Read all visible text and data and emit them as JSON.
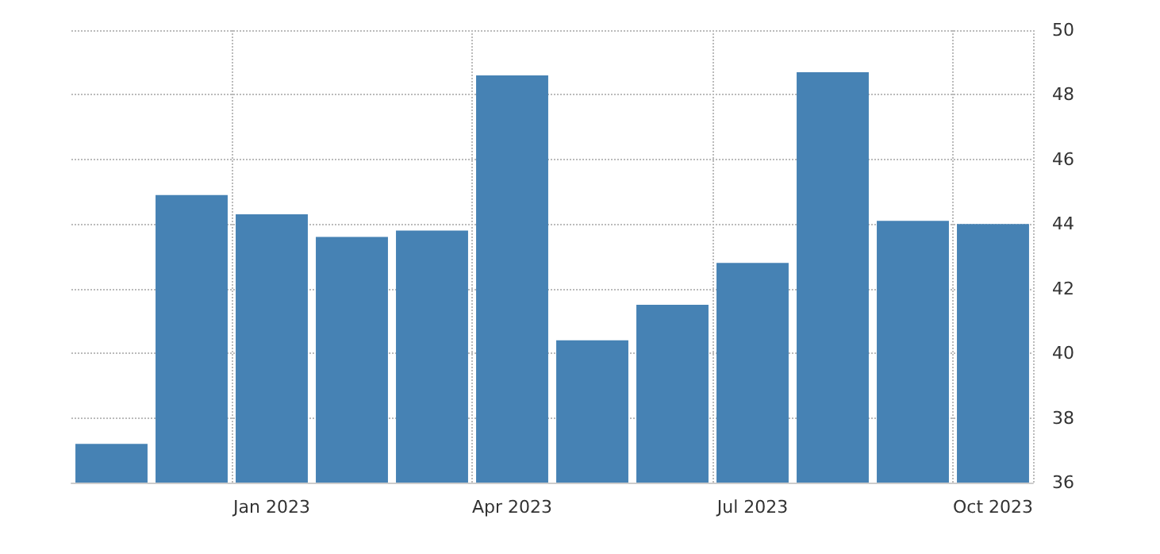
{
  "chart_data": {
    "type": "bar",
    "categories": [
      null,
      null,
      "Jan 2023",
      null,
      null,
      "Apr 2023",
      null,
      null,
      "Jul 2023",
      null,
      null,
      "Oct 2023"
    ],
    "values": [
      37.2,
      44.9,
      44.3,
      43.6,
      43.8,
      48.6,
      40.4,
      41.5,
      42.8,
      48.7,
      44.1,
      44.0
    ],
    "color": "#4682b4",
    "ylim": [
      36,
      50
    ],
    "yticks": [
      36,
      38,
      40,
      42,
      44,
      46,
      48,
      50
    ],
    "grid": true
  }
}
